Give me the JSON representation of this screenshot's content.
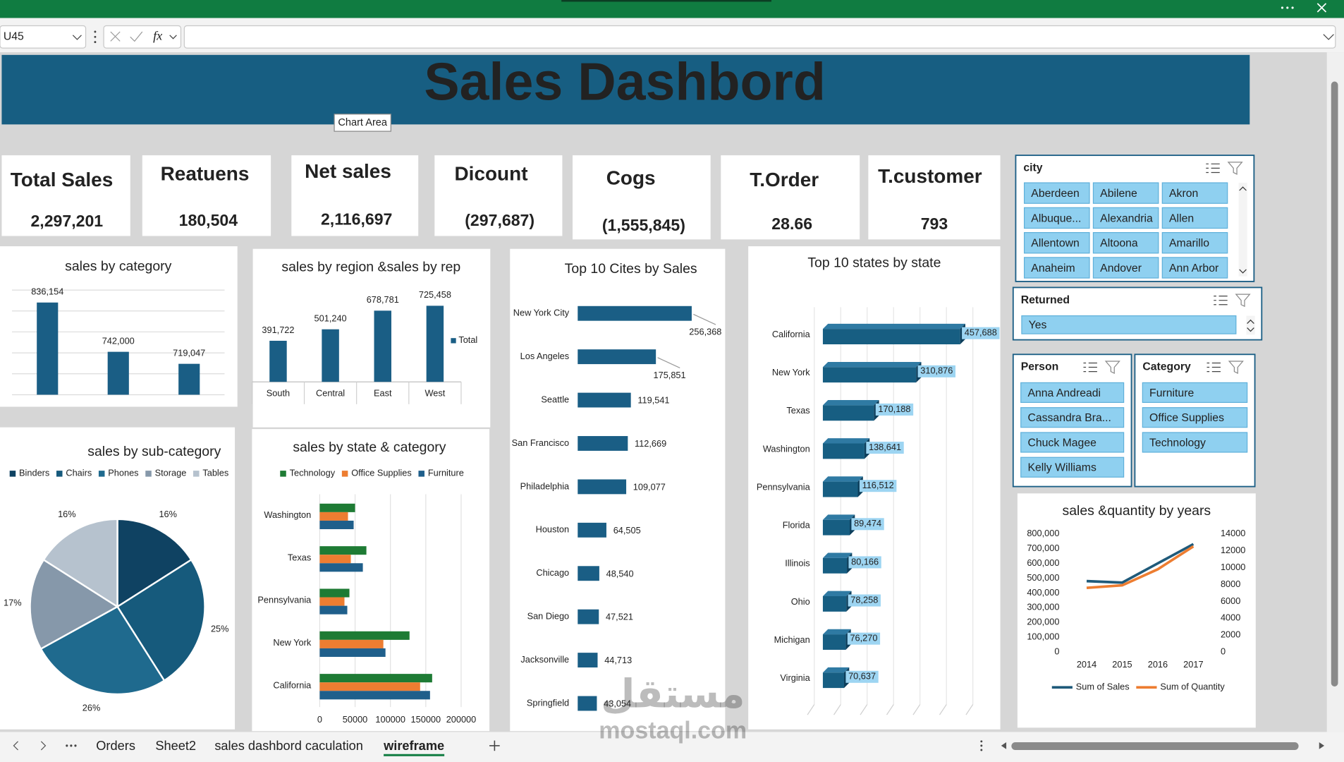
{
  "excel": {
    "name_box": "U45",
    "formula_icon": "fx",
    "tooltip": "Chart Area",
    "sheet_tabs": [
      "Orders",
      "Sheet2",
      "sales dashbord caculation",
      "wireframe"
    ],
    "active_tab": 3
  },
  "watermark": [
    "مستقل",
    "mostaql.com"
  ],
  "dashboard": {
    "title": "Sales Dashbord",
    "kpis": [
      {
        "label": "Total Sales",
        "value": "2,297,201"
      },
      {
        "label": "Reatuens",
        "value": "180,504"
      },
      {
        "label": "Net sales",
        "value": "2,116,697"
      },
      {
        "label": "Dicount",
        "value": "(297,687)"
      },
      {
        "label": "Cogs",
        "value": "(1,555,845)"
      },
      {
        "label": "T.Order",
        "value": "28.66"
      },
      {
        "label": "T.customer",
        "value": "793"
      }
    ]
  },
  "slicers": [
    {
      "title": "city",
      "items": [
        "Aberdeen",
        "Abilene",
        "Akron",
        "Albuque...",
        "Alexandria",
        "Allen",
        "Allentown",
        "Altoona",
        "Amarillo",
        "Anaheim",
        "Andover",
        "Ann Arbor"
      ]
    },
    {
      "title": "Returned",
      "items": [
        "Yes"
      ]
    },
    {
      "title": "Person",
      "items": [
        "Anna Andreadi",
        "Cassandra Bra...",
        "Chuck Magee",
        "Kelly Williams"
      ]
    },
    {
      "title": "Category",
      "items": [
        "Furniture",
        "Office Supplies",
        "Technology"
      ]
    }
  ],
  "chart_data": [
    {
      "type": "bar",
      "title": "sales by category",
      "categories": [
        null,
        null,
        null
      ],
      "values": [
        836154,
        742000,
        719047
      ],
      "value_labels": [
        "836,154",
        "742,000",
        "719,047"
      ],
      "color": "#1a5e85",
      "ylim": [
        660000,
        860000
      ],
      "yticks": [
        660000,
        700000,
        740000,
        780000,
        820000,
        860000
      ],
      "grid": true
    },
    {
      "type": "bar",
      "title": "sales by region  &sales by rep",
      "categories": [
        "South",
        "Central",
        "East",
        "West"
      ],
      "series": [
        {
          "name": "Total",
          "color": "#1a5e85",
          "values": [
            391722,
            501240,
            678781,
            725458
          ],
          "value_labels": [
            "391,722",
            "501,240",
            "678,781",
            "725,458"
          ]
        }
      ],
      "ylim": [
        0,
        900000
      ],
      "legend": "right"
    },
    {
      "type": "pie",
      "title": "sales by sub-category",
      "categories": [
        "Binders",
        "Chairs",
        "Phones",
        "Storage",
        "Tables"
      ],
      "values": [
        16,
        25,
        26,
        17,
        16
      ],
      "value_labels": [
        "16%",
        "25%",
        "26%",
        "17%",
        "16%"
      ],
      "colors": [
        "#0f4262",
        "#165a7c",
        "#1f6a8e",
        "#8698aa",
        "#b6c2ce"
      ],
      "legend": "top"
    },
    {
      "type": "hbar",
      "title": "sales by state & category",
      "categories": [
        "Washington",
        "Texas",
        "Pennsylvania",
        "New York",
        "California"
      ],
      "series": [
        {
          "name": "Technology",
          "color": "#1e7b34",
          "values": [
            50000,
            66000,
            42000,
            127000,
            159000
          ]
        },
        {
          "name": "Office Supplies",
          "color": "#ed7d31",
          "values": [
            40000,
            44000,
            35000,
            90000,
            142000
          ]
        },
        {
          "name": "Furniture",
          "color": "#1f5f8b",
          "values": [
            48000,
            61000,
            39000,
            93000,
            156000
          ]
        }
      ],
      "xlim": [
        0,
        200000
      ],
      "xticks": [
        0,
        50000,
        100000,
        150000,
        200000
      ],
      "grid": true,
      "legend": "top"
    },
    {
      "type": "hbar",
      "title": "Top 10 Cites by Sales",
      "categories": [
        "New York City",
        "Los Angeles",
        "Seattle",
        "San Francisco",
        "Philadelphia",
        "Houston",
        "Chicago",
        "San Diego",
        "Jacksonville",
        "Springfield"
      ],
      "values": [
        256368,
        175851,
        119541,
        112669,
        109077,
        64505,
        48540,
        47521,
        44713,
        43054
      ],
      "value_labels": [
        "256,368",
        "175,851",
        "119,541",
        "112,669",
        "109,077",
        "64,505",
        "48,540",
        "47,521",
        "44,713",
        "43,054"
      ],
      "color": "#1a5e85",
      "xlim": [
        0,
        320000
      ]
    },
    {
      "type": "hbar3d",
      "title": "Top 10 states by state",
      "categories": [
        "California",
        "New York",
        "Texas",
        "Washington",
        "Pennsylvania",
        "Florida",
        "Illinois",
        "Ohio",
        "Michigan",
        "Virginia"
      ],
      "values": [
        457688,
        310876,
        170188,
        138641,
        116512,
        89474,
        80166,
        78258,
        76270,
        70637
      ],
      "value_labels": [
        "457,688",
        "310,876",
        "170,188",
        "138,641",
        "116,512",
        "89,474",
        "80,166",
        "78,258",
        "76,270",
        "70,637"
      ],
      "color": "#175e82",
      "label_color": "#9dd5f2",
      "xlim": [
        0,
        500000
      ]
    },
    {
      "type": "line",
      "title": "sales &quantity by years",
      "categories": [
        "2014",
        "2015",
        "2016",
        "2017"
      ],
      "series": [
        {
          "name": "Sum of Sales",
          "color": "#1f5a7a",
          "values": [
            480000,
            470000,
            600000,
            730000
          ]
        },
        {
          "name": "Sum of Quantity",
          "color": "#ed7d31",
          "axis": "y2",
          "values": [
            7600,
            7900,
            9800,
            12500
          ]
        }
      ],
      "ylim": [
        0,
        800000
      ],
      "yticks": [
        0,
        {
          "value": 100000,
          "label": "100,000"
        },
        {
          "value": 200000,
          "label": "200,000"
        },
        {
          "value": 300000,
          "label": "300,000"
        },
        {
          "value": 400000,
          "label": "400,000"
        },
        {
          "value": 500000,
          "label": "500,000"
        },
        {
          "value": 600000,
          "label": "600,000"
        },
        {
          "value": 700000,
          "label": "700,000"
        },
        {
          "value": 800000,
          "label": "800,000"
        }
      ],
      "y2lim": [
        0,
        14000
      ],
      "y2ticks": [
        0,
        2000,
        4000,
        6000,
        8000,
        10000,
        12000,
        14000
      ],
      "legend": "bottom"
    }
  ]
}
